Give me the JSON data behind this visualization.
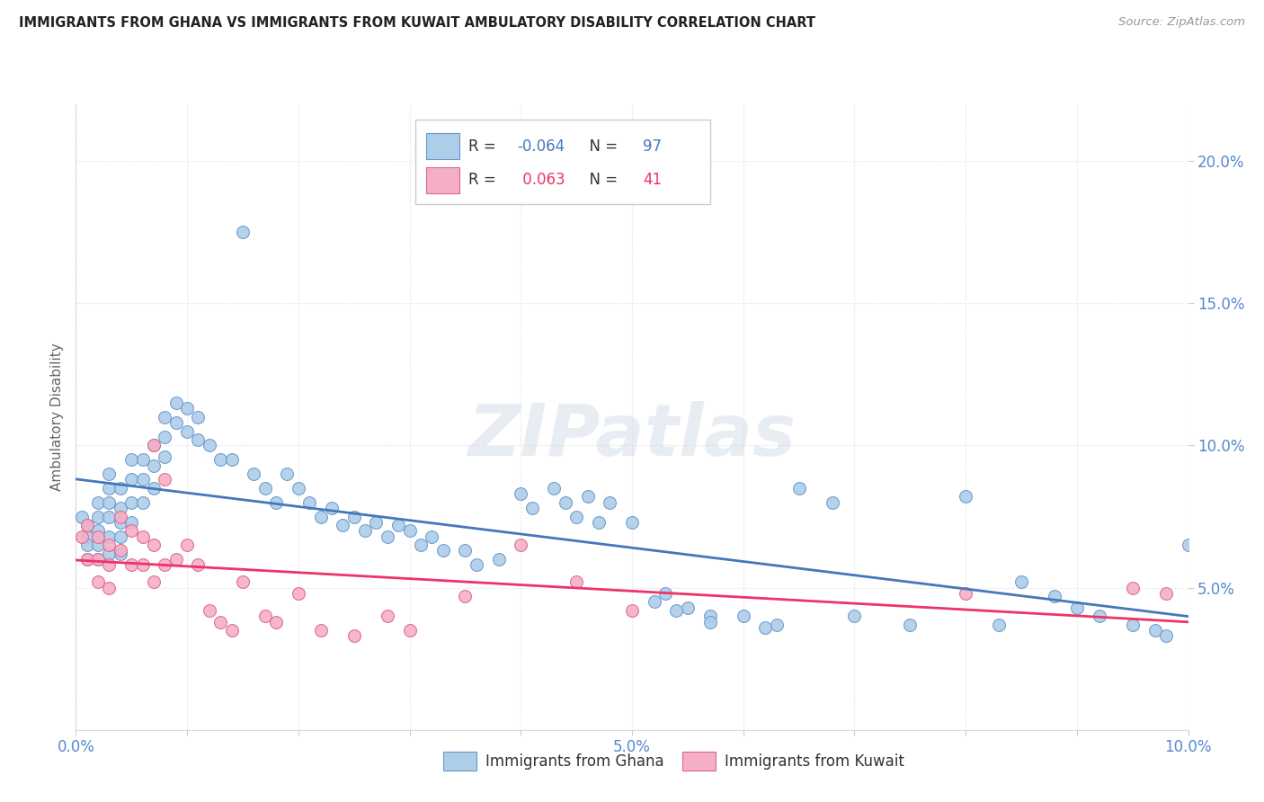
{
  "title": "IMMIGRANTS FROM GHANA VS IMMIGRANTS FROM KUWAIT AMBULATORY DISABILITY CORRELATION CHART",
  "source": "Source: ZipAtlas.com",
  "ylabel": "Ambulatory Disability",
  "xlim": [
    0.0,
    0.1
  ],
  "ylim": [
    0.0,
    0.22
  ],
  "yticks": [
    0.05,
    0.1,
    0.15,
    0.2
  ],
  "ytick_labels": [
    "5.0%",
    "10.0%",
    "15.0%",
    "20.0%"
  ],
  "xtick_labels": [
    "0.0%",
    "",
    "",
    "",
    "",
    "5.0%",
    "",
    "",
    "",
    "",
    "10.0%"
  ],
  "ghana_color": "#aecde8",
  "kuwait_color": "#f5aec8",
  "ghana_edge": "#6699cc",
  "kuwait_edge": "#dd6688",
  "trend_ghana_color": "#4477bb",
  "trend_kuwait_color": "#ee3366",
  "ghana_R": -0.064,
  "ghana_N": 97,
  "kuwait_R": 0.063,
  "kuwait_N": 41,
  "watermark": "ZIPatlas",
  "background_color": "#ffffff",
  "grid_color": "#dddddd",
  "axis_label_color": "#5588cc",
  "ghana_x": [
    0.0005,
    0.001,
    0.001,
    0.001,
    0.001,
    0.002,
    0.002,
    0.002,
    0.002,
    0.002,
    0.003,
    0.003,
    0.003,
    0.003,
    0.003,
    0.003,
    0.004,
    0.004,
    0.004,
    0.004,
    0.004,
    0.005,
    0.005,
    0.005,
    0.005,
    0.006,
    0.006,
    0.006,
    0.007,
    0.007,
    0.007,
    0.008,
    0.008,
    0.008,
    0.009,
    0.009,
    0.01,
    0.01,
    0.011,
    0.011,
    0.012,
    0.013,
    0.014,
    0.015,
    0.016,
    0.017,
    0.018,
    0.019,
    0.02,
    0.021,
    0.022,
    0.023,
    0.024,
    0.025,
    0.026,
    0.027,
    0.028,
    0.029,
    0.03,
    0.031,
    0.032,
    0.033,
    0.035,
    0.036,
    0.038,
    0.04,
    0.041,
    0.043,
    0.044,
    0.046,
    0.048,
    0.05,
    0.053,
    0.055,
    0.057,
    0.06,
    0.063,
    0.065,
    0.068,
    0.07,
    0.075,
    0.08,
    0.083,
    0.085,
    0.088,
    0.09,
    0.092,
    0.095,
    0.097,
    0.098,
    0.1,
    0.045,
    0.047,
    0.052,
    0.054,
    0.057,
    0.062
  ],
  "ghana_y": [
    0.075,
    0.072,
    0.068,
    0.065,
    0.06,
    0.08,
    0.075,
    0.07,
    0.065,
    0.06,
    0.09,
    0.085,
    0.08,
    0.075,
    0.068,
    0.062,
    0.085,
    0.078,
    0.073,
    0.068,
    0.062,
    0.095,
    0.088,
    0.08,
    0.073,
    0.095,
    0.088,
    0.08,
    0.1,
    0.093,
    0.085,
    0.11,
    0.103,
    0.096,
    0.115,
    0.108,
    0.113,
    0.105,
    0.11,
    0.102,
    0.1,
    0.095,
    0.095,
    0.175,
    0.09,
    0.085,
    0.08,
    0.09,
    0.085,
    0.08,
    0.075,
    0.078,
    0.072,
    0.075,
    0.07,
    0.073,
    0.068,
    0.072,
    0.07,
    0.065,
    0.068,
    0.063,
    0.063,
    0.058,
    0.06,
    0.083,
    0.078,
    0.085,
    0.08,
    0.082,
    0.08,
    0.073,
    0.048,
    0.043,
    0.04,
    0.04,
    0.037,
    0.085,
    0.08,
    0.04,
    0.037,
    0.082,
    0.037,
    0.052,
    0.047,
    0.043,
    0.04,
    0.037,
    0.035,
    0.033,
    0.065,
    0.075,
    0.073,
    0.045,
    0.042,
    0.038,
    0.036
  ],
  "kuwait_x": [
    0.0005,
    0.001,
    0.001,
    0.002,
    0.002,
    0.002,
    0.003,
    0.003,
    0.003,
    0.004,
    0.004,
    0.005,
    0.005,
    0.006,
    0.006,
    0.007,
    0.007,
    0.007,
    0.008,
    0.008,
    0.009,
    0.01,
    0.011,
    0.012,
    0.013,
    0.014,
    0.015,
    0.017,
    0.018,
    0.02,
    0.022,
    0.025,
    0.028,
    0.03,
    0.035,
    0.04,
    0.045,
    0.05,
    0.08,
    0.095,
    0.098
  ],
  "kuwait_y": [
    0.068,
    0.072,
    0.06,
    0.068,
    0.06,
    0.052,
    0.065,
    0.058,
    0.05,
    0.075,
    0.063,
    0.07,
    0.058,
    0.068,
    0.058,
    0.1,
    0.065,
    0.052,
    0.088,
    0.058,
    0.06,
    0.065,
    0.058,
    0.042,
    0.038,
    0.035,
    0.052,
    0.04,
    0.038,
    0.048,
    0.035,
    0.033,
    0.04,
    0.035,
    0.047,
    0.065,
    0.052,
    0.042,
    0.048,
    0.05,
    0.048
  ]
}
